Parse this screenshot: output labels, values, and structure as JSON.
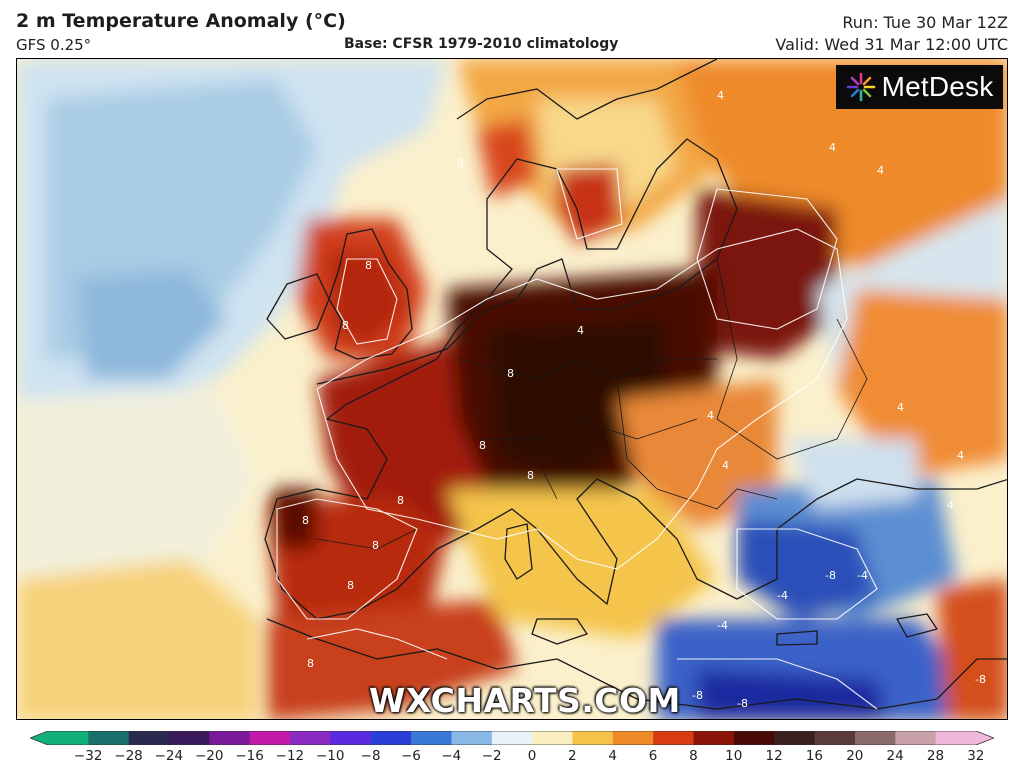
{
  "header": {
    "title": "2 m Temperature Anomaly (°C)",
    "model": "GFS 0.25°",
    "base": "Base: CFSR 1979-2010 climatology",
    "run": "Run: Tue 30 Mar 12Z",
    "valid": "Valid: Wed 31 Mar 12:00 UTC"
  },
  "brand": {
    "name": "MetDesk",
    "icon": "metdesk-starburst-icon"
  },
  "watermark": "WXCHARTS.COM",
  "colorbar": {
    "unit": "°C",
    "ticks": [
      "−32",
      "−28",
      "−24",
      "−20",
      "−16",
      "−12",
      "−10",
      "−8",
      "−6",
      "−4",
      "−2",
      "0",
      "2",
      "4",
      "6",
      "8",
      "10",
      "12",
      "16",
      "20",
      "24",
      "28",
      "32"
    ],
    "colors": [
      "#11b07a",
      "#1a6f6a",
      "#2a2a50",
      "#3a1a5a",
      "#7a1a9a",
      "#c21aa8",
      "#8a2ac0",
      "#5a2ae0",
      "#2a3ed8",
      "#3a78d8",
      "#8ab8e6",
      "#e8f2fa",
      "#fbeec0",
      "#f6c24a",
      "#ee8a28",
      "#d83a12",
      "#8a1408",
      "#4a0a08",
      "#3a2020",
      "#5a3a3a",
      "#8a6a6a",
      "#c8a0a8",
      "#f0b8d8"
    ]
  },
  "map": {
    "region": "Europe",
    "contour_labels": [
      "8",
      "8",
      "8",
      "8",
      "8",
      "8",
      "8",
      "8",
      "8",
      "8",
      "8",
      "4",
      "4",
      "4",
      "4",
      "4",
      "4",
      "4",
      "4",
      "4",
      "-4",
      "-4",
      "-4",
      "-8",
      "-8",
      "-8",
      "-8"
    ],
    "anomaly_areas": [
      {
        "name": "central-europe",
        "level": "≥12"
      },
      {
        "name": "france",
        "level": "8–12"
      },
      {
        "name": "british-isles",
        "level": "8–12"
      },
      {
        "name": "iberia",
        "level": "8–12"
      },
      {
        "name": "scandinavia",
        "level": "4–8"
      },
      {
        "name": "western-russia",
        "level": "8–12"
      },
      {
        "name": "north-atlantic",
        "level": "−4–0"
      },
      {
        "name": "aegean-turkey",
        "level": "−8–−4"
      },
      {
        "name": "eastern-mediterranean",
        "level": "−8–−4"
      }
    ]
  }
}
